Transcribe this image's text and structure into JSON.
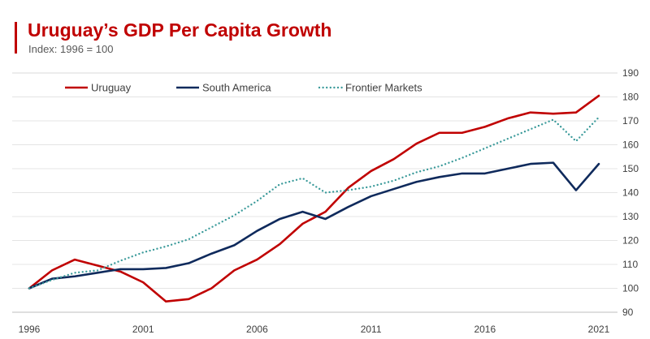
{
  "header": {
    "title": "Uruguay’s GDP Per Capita Growth",
    "subtitle": "Index: 1996 = 100"
  },
  "chart_data": {
    "type": "line",
    "title": "Uruguay’s GDP Per Capita Growth",
    "subtitle": "Index: 1996 = 100",
    "xlabel": "",
    "ylabel": "",
    "x": [
      1996,
      1997,
      1998,
      1999,
      2000,
      2001,
      2002,
      2003,
      2004,
      2005,
      2006,
      2007,
      2008,
      2009,
      2010,
      2011,
      2012,
      2013,
      2014,
      2015,
      2016,
      2017,
      2018,
      2019,
      2020,
      2021
    ],
    "xticks": [
      1996,
      2001,
      2006,
      2011,
      2016,
      2021
    ],
    "yticks": [
      90,
      100,
      110,
      120,
      130,
      140,
      150,
      160,
      170,
      180,
      190
    ],
    "xlim": [
      1996,
      2021
    ],
    "ylim": [
      90,
      190
    ],
    "y_axis_side": "right",
    "grid": true,
    "legend_position": "top",
    "series": [
      {
        "name": "Uruguay",
        "color": "#c00000",
        "style": "solid",
        "values": [
          100,
          107.5,
          112,
          109.5,
          107,
          102.5,
          94.5,
          95.5,
          100,
          107.5,
          112,
          118.5,
          127,
          132,
          142,
          149,
          154,
          160.5,
          165,
          165,
          167.5,
          171,
          173.5,
          173,
          173.5,
          180.5
        ]
      },
      {
        "name": "South America",
        "color": "#0f2a5c",
        "style": "solid",
        "values": [
          100,
          104,
          105,
          106.5,
          108,
          108,
          108.5,
          110.5,
          114.5,
          118,
          124,
          129,
          132,
          129,
          134,
          138.5,
          141.5,
          144.5,
          146.5,
          148,
          148,
          150,
          152,
          152.5,
          141,
          152
        ]
      },
      {
        "name": "Frontier Markets",
        "color": "#3a9a9a",
        "style": "dotted",
        "values": [
          100,
          103.5,
          106.5,
          107.5,
          111.5,
          115,
          117.5,
          120.5,
          125.5,
          130.5,
          136.5,
          143.5,
          146,
          140,
          141,
          142.5,
          145,
          148.5,
          151,
          154.5,
          158.5,
          162.5,
          166.5,
          170.5,
          161.5,
          171.5
        ]
      }
    ]
  }
}
